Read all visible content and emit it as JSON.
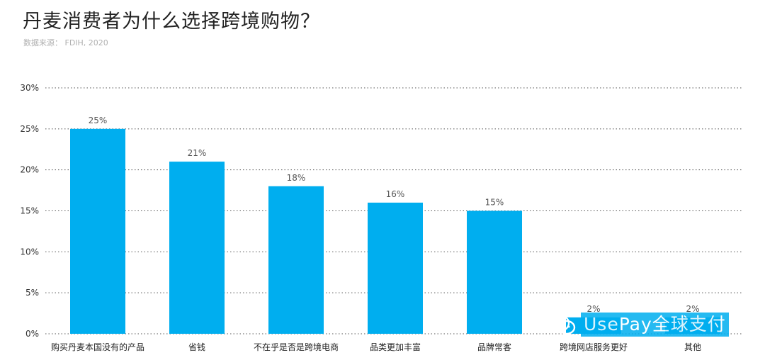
{
  "title": "丹麦消费者为什么选择跨境购物？",
  "source": "数据来源： FDIH, 2020",
  "watermark": {
    "text": "UsePay全球支付",
    "icon": "wechat-icon"
  },
  "colors": {
    "bar": "#00aeef",
    "grid": "#555555"
  },
  "chart_data": {
    "type": "bar",
    "categories": [
      "购买丹麦本国没有的产品",
      "省钱",
      "不在乎是否是跨境电商",
      "品类更加丰富",
      "品牌常客",
      "跨境网店服务更好",
      "其他"
    ],
    "values": [
      25,
      21,
      18,
      16,
      15,
      2,
      2
    ],
    "value_labels": [
      "25%",
      "21%",
      "18%",
      "16%",
      "15%",
      "2%",
      "2%"
    ],
    "ylim": [
      0,
      30
    ],
    "yticks": [
      0,
      5,
      10,
      15,
      20,
      25,
      30
    ],
    "ytick_labels": [
      "0%",
      "5%",
      "10%",
      "15%",
      "20%",
      "25%",
      "30%"
    ],
    "grid": true,
    "grid_style": "dotted",
    "title": "丹麦消费者为什么选择跨境购物？",
    "xlabel": "",
    "ylabel": ""
  }
}
